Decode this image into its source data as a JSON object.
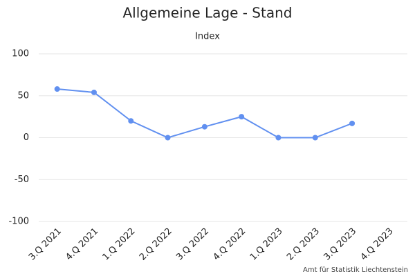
{
  "chart_data": {
    "type": "line",
    "title": "Allgemeine Lage - Stand",
    "subtitle": "Index",
    "categories": [
      "3.Q 2021",
      "4.Q 2021",
      "1.Q 2022",
      "2.Q 2022",
      "3.Q 2022",
      "4.Q 2022",
      "1.Q 2023",
      "2.Q 2023",
      "3.Q 2023",
      "4.Q 2023"
    ],
    "values": [
      58,
      54,
      20,
      0,
      13,
      25,
      0,
      0,
      17,
      null
    ],
    "color": "#6190f0",
    "ylim": [
      -100,
      100
    ],
    "yticks": [
      -100,
      -50,
      0,
      50,
      100
    ],
    "grid": true,
    "credit": "Amt für Statistik Liechtenstein"
  }
}
